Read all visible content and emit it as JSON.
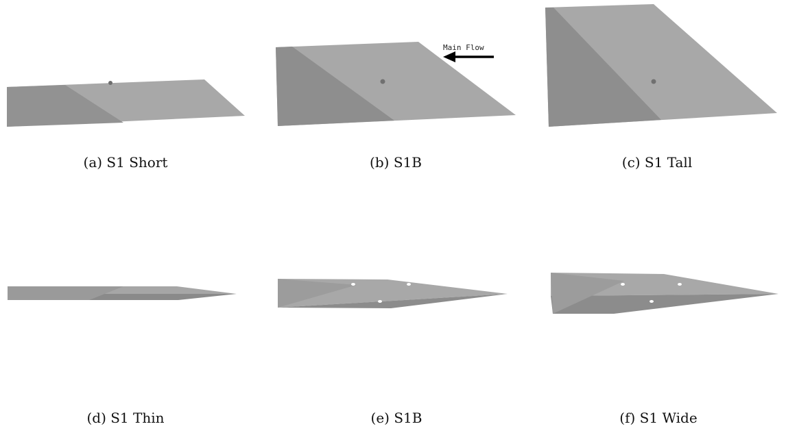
{
  "figure": {
    "panels": [
      {
        "caption": "(a) S1 Short",
        "model": "S1 Short",
        "view": "side"
      },
      {
        "caption": "(b) S1B",
        "model": "S1B",
        "view": "side"
      },
      {
        "caption": "(c) S1 Tall",
        "model": "S1 Tall",
        "view": "side"
      },
      {
        "caption": "(d) S1 Thin",
        "model": "S1 Thin",
        "view": "top"
      },
      {
        "caption": "(e) S1B",
        "model": "S1B",
        "view": "top"
      },
      {
        "caption": "(f) S1 Wide",
        "model": "S1 Wide",
        "view": "top"
      }
    ],
    "flow_annotation": {
      "label": "Main Flow",
      "arrow_direction": "left"
    },
    "colors": {
      "light_face": "#a8a8a8",
      "dark_face": "#8e8e8e",
      "mid_face": "#9c9c9c",
      "marker_dark": "#707070",
      "marker_light": "#ffffff",
      "arrow": "#000000"
    }
  }
}
